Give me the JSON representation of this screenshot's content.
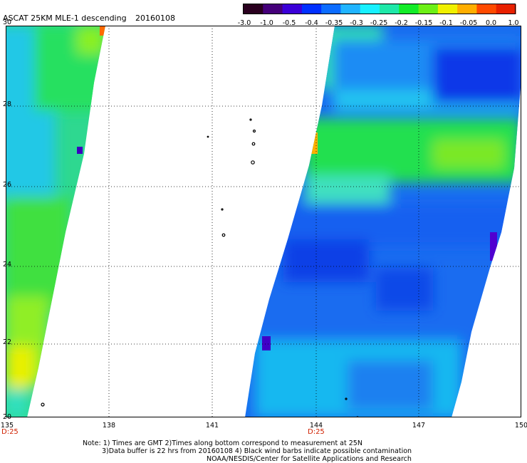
{
  "header": {
    "title": "ASCAT 25KM MLE-1 descending",
    "date": "20160108"
  },
  "colorbar": {
    "labels": [
      "-3.0",
      "-1.0",
      "-0.5",
      "-0.4",
      "-0.35",
      "-0.3",
      "-0.25",
      "-0.2",
      "-0.15",
      "-0.1",
      "-0.05",
      "0.0",
      "1.0"
    ],
    "colors": [
      "#2a001f",
      "#45007a",
      "#3b00d8",
      "#0030ff",
      "#0c6cff",
      "#20b4ff",
      "#18f0ff",
      "#1ee8a8",
      "#12ec28",
      "#6cf016",
      "#f0f000",
      "#ffae00",
      "#ff4a00",
      "#e82000"
    ]
  },
  "map": {
    "lat_labels": [
      "30",
      "28",
      "26",
      "24",
      "22",
      "20"
    ],
    "lon_labels": [
      "135",
      "138",
      "141",
      "144",
      "147",
      "150"
    ],
    "time_labels": [
      "D:25",
      "D:25"
    ]
  },
  "notes": {
    "line1": "Note: 1) Times are GMT 2)Times along bottom correspond to measurement at 25N",
    "line2": "3)Data buffer is 22 hrs from 20160108 4) Black wind barbs indicate possible contamination",
    "line3": "NOAA/NESDIS/Center for Satellite Applications and Research"
  }
}
